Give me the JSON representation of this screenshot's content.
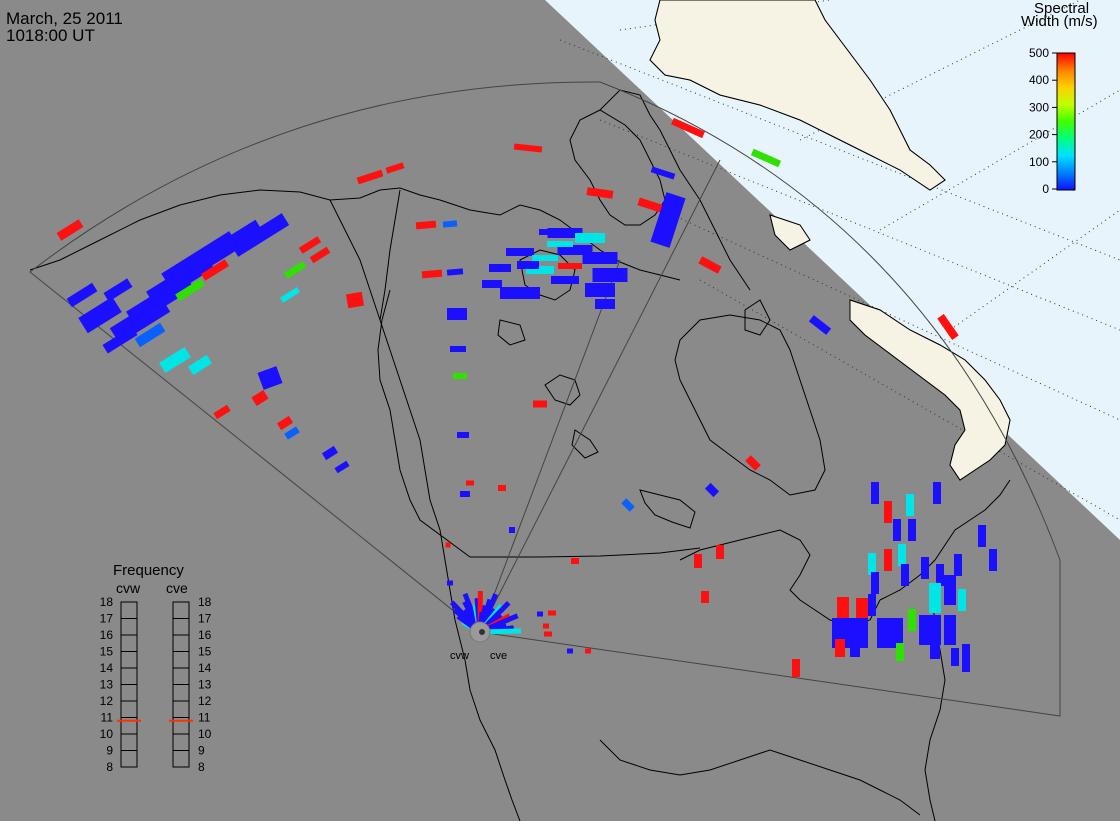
{
  "header": {
    "date": "March, 25 2011",
    "time": "1018:00 UT"
  },
  "colorbar": {
    "title_line1": "Spectral",
    "title_line2": "Width (m/s)",
    "ticks": [
      "500",
      "400",
      "300",
      "200",
      "100",
      "0"
    ],
    "range": [
      0,
      500
    ],
    "colors": [
      "#1010ff",
      "#0080ff",
      "#00e0ff",
      "#00ff80",
      "#40ff00",
      "#c0ff00",
      "#ffd000",
      "#ff8000",
      "#ff0000"
    ]
  },
  "radars": {
    "west": "cvw",
    "east": "cve"
  },
  "frequency": {
    "title": "Frequency",
    "left_label": "cvw",
    "right_label": "cve",
    "scale": [
      "18",
      "17",
      "16",
      "15",
      "14",
      "13",
      "12",
      "11",
      "10",
      "9",
      "8"
    ],
    "cvw_mhz": 10.8,
    "cve_mhz": 10.8,
    "indicator_color": "#ff3000"
  },
  "colors": {
    "night": "#8a8a8a",
    "day": "#e8f4fc",
    "land_day": "#f6f3e4",
    "coast": "#000000",
    "fov": "#444444"
  }
}
